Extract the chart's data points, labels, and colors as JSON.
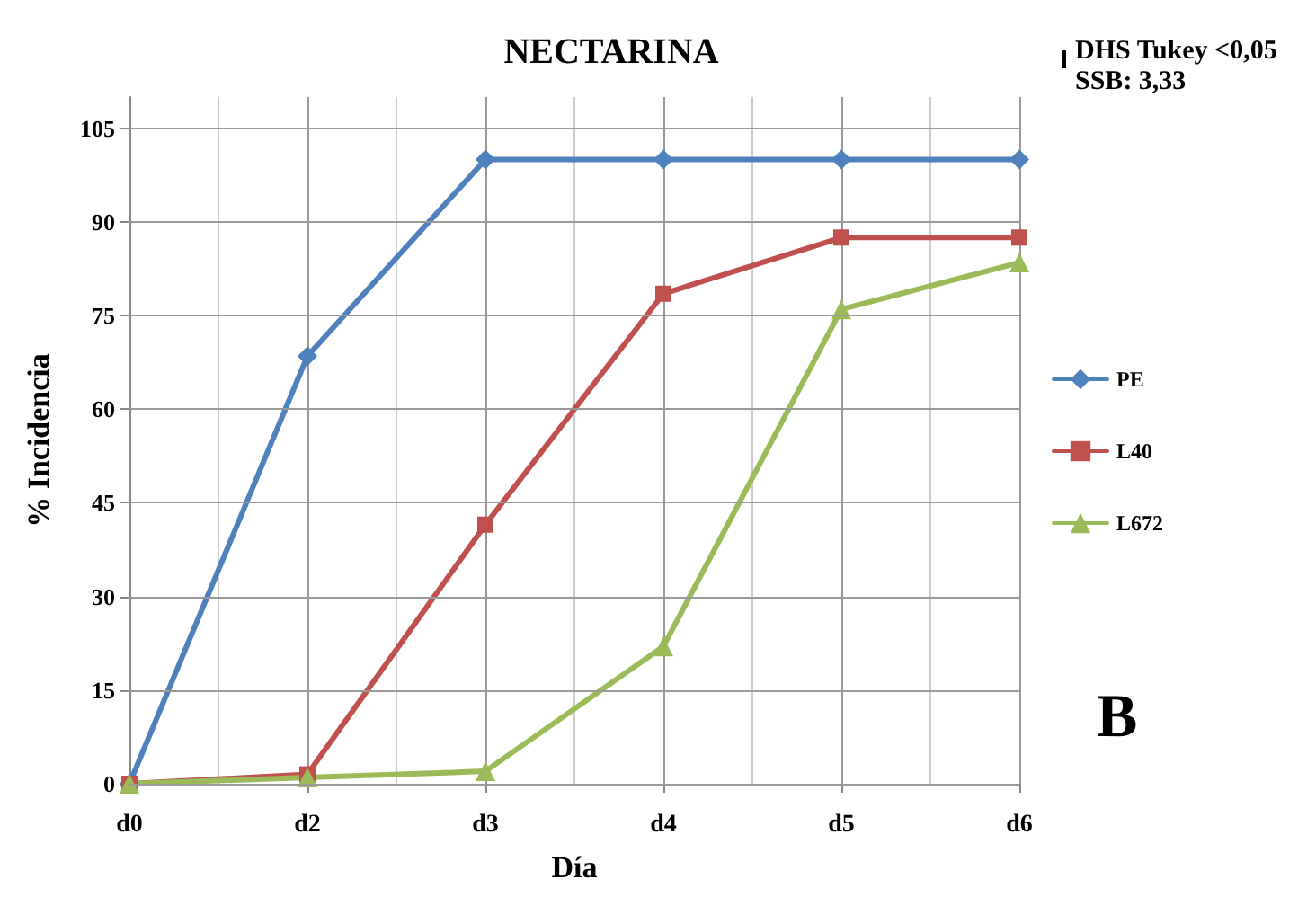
{
  "chart_data": {
    "type": "line",
    "title": "NECTARINA",
    "xlabel": "Día",
    "ylabel": "% Incidencia",
    "categories": [
      "d0",
      "d2",
      "d3",
      "d4",
      "d5",
      "d6"
    ],
    "series": [
      {
        "name": "PE",
        "color": "#4f81bd",
        "marker": "diamond",
        "values": [
          0,
          68.5,
          100,
          100,
          100,
          100
        ]
      },
      {
        "name": "L40",
        "color": "#c0504d",
        "marker": "square",
        "values": [
          0,
          1.5,
          41.5,
          78.5,
          87.5,
          87.5
        ]
      },
      {
        "name": "L672",
        "color": "#9bbb59",
        "marker": "triangle",
        "values": [
          0,
          1,
          2,
          22,
          76,
          83.5
        ]
      }
    ],
    "ylim": [
      0,
      110
    ],
    "yticks": [
      0,
      15,
      30,
      45,
      60,
      75,
      90,
      105
    ],
    "grid": true,
    "legend": "right",
    "line_style": "solid",
    "annotations": [
      "DHS Tukey <0,05",
      "SSB: 3,33",
      "B"
    ]
  }
}
